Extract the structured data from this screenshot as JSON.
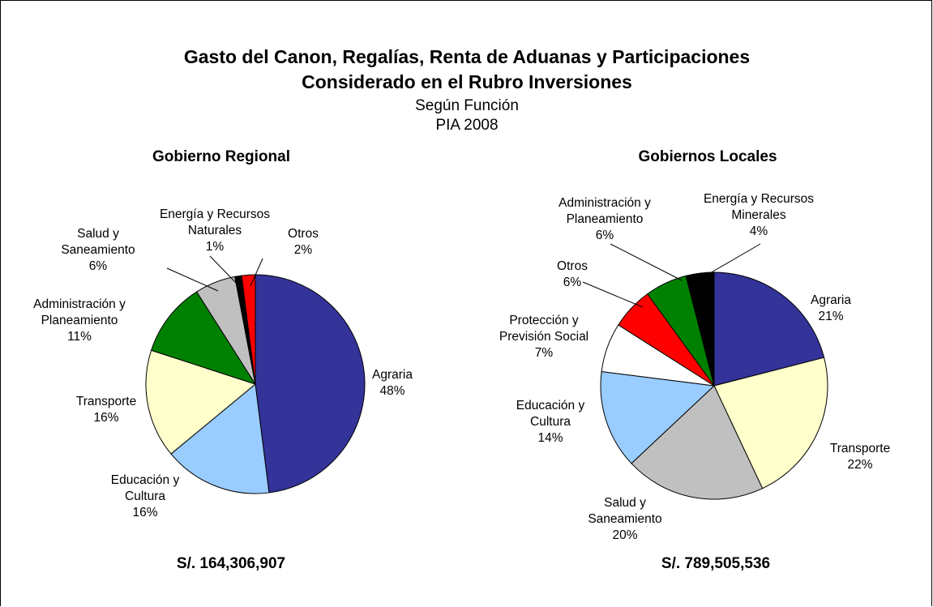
{
  "header": {
    "title": [
      "Gasto del Canon, Regalías, Renta de Aduanas y Participaciones",
      "Considerado en el Rubro Inversiones"
    ],
    "subtitle": [
      "Según Función",
      "PIA 2008"
    ]
  },
  "chart_data": [
    {
      "type": "pie",
      "title": "Gobierno Regional",
      "categories": [
        "Agraria",
        "Educación y Cultura",
        "Transporte",
        "Administración y Planeamiento",
        "Salud y Saneamiento",
        "Energía y Recursos Naturales",
        "Otros"
      ],
      "values": [
        48,
        16,
        16,
        11,
        6,
        1,
        2
      ],
      "value_labels": [
        "48%",
        "16%",
        "16%",
        "11%",
        "6%",
        "1%",
        "2%"
      ],
      "colors": [
        "#333399",
        "#99ccff",
        "#ffffcc",
        "#008000",
        "#c0c0c0",
        "#000000",
        "#ff0000"
      ],
      "annotation": "S/. 164,306,907"
    },
    {
      "type": "pie",
      "title": "Gobiernos Locales",
      "categories": [
        "Agraria",
        "Transporte",
        "Salud y Saneamiento",
        "Educación y Cultura",
        "Protección y Previsión Social",
        "Otros",
        "Administración y Planeamiento",
        "Energía y Recursos Minerales"
      ],
      "values": [
        21,
        22,
        20,
        14,
        7,
        6,
        6,
        4
      ],
      "value_labels": [
        "21%",
        "22%",
        "20%",
        "14%",
        "7%",
        "6%",
        "6%",
        "4%"
      ],
      "colors": [
        "#333399",
        "#ffffcc",
        "#c0c0c0",
        "#99ccff",
        "#ffffff",
        "#ff0000",
        "#008000",
        "#000000"
      ],
      "annotation": "S/. 789,505,536"
    }
  ]
}
